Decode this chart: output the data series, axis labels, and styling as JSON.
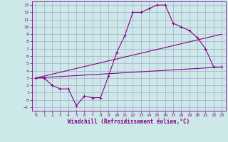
{
  "xlabel": "Windchill (Refroidissement éolien,°C)",
  "bg_color": "#cce8e8",
  "grid_color": "#aaaacc",
  "line_color": "#880088",
  "xlim": [
    -0.5,
    23.5
  ],
  "ylim": [
    -1.5,
    13.5
  ],
  "xticks": [
    0,
    1,
    2,
    3,
    4,
    5,
    6,
    7,
    8,
    9,
    10,
    11,
    12,
    13,
    14,
    15,
    16,
    17,
    18,
    19,
    20,
    21,
    22,
    23
  ],
  "yticks": [
    -1,
    0,
    1,
    2,
    3,
    4,
    5,
    6,
    7,
    8,
    9,
    10,
    11,
    12,
    13
  ],
  "line1_x": [
    0,
    1,
    2,
    3,
    4,
    5,
    6,
    7,
    8,
    9,
    10,
    11,
    12,
    13,
    14,
    15,
    16,
    17,
    18,
    19,
    20,
    21,
    22,
    23
  ],
  "line1_y": [
    3.0,
    3.0,
    2.0,
    1.5,
    1.5,
    -0.8,
    0.5,
    0.3,
    0.3,
    3.3,
    6.5,
    8.8,
    12.0,
    12.0,
    12.5,
    13.0,
    13.0,
    10.5,
    10.0,
    9.5,
    8.5,
    7.0,
    4.5,
    4.5
  ],
  "line2_x": [
    0,
    23
  ],
  "line2_y": [
    3.0,
    9.0
  ],
  "line3_x": [
    0,
    23
  ],
  "line3_y": [
    3.0,
    4.5
  ]
}
